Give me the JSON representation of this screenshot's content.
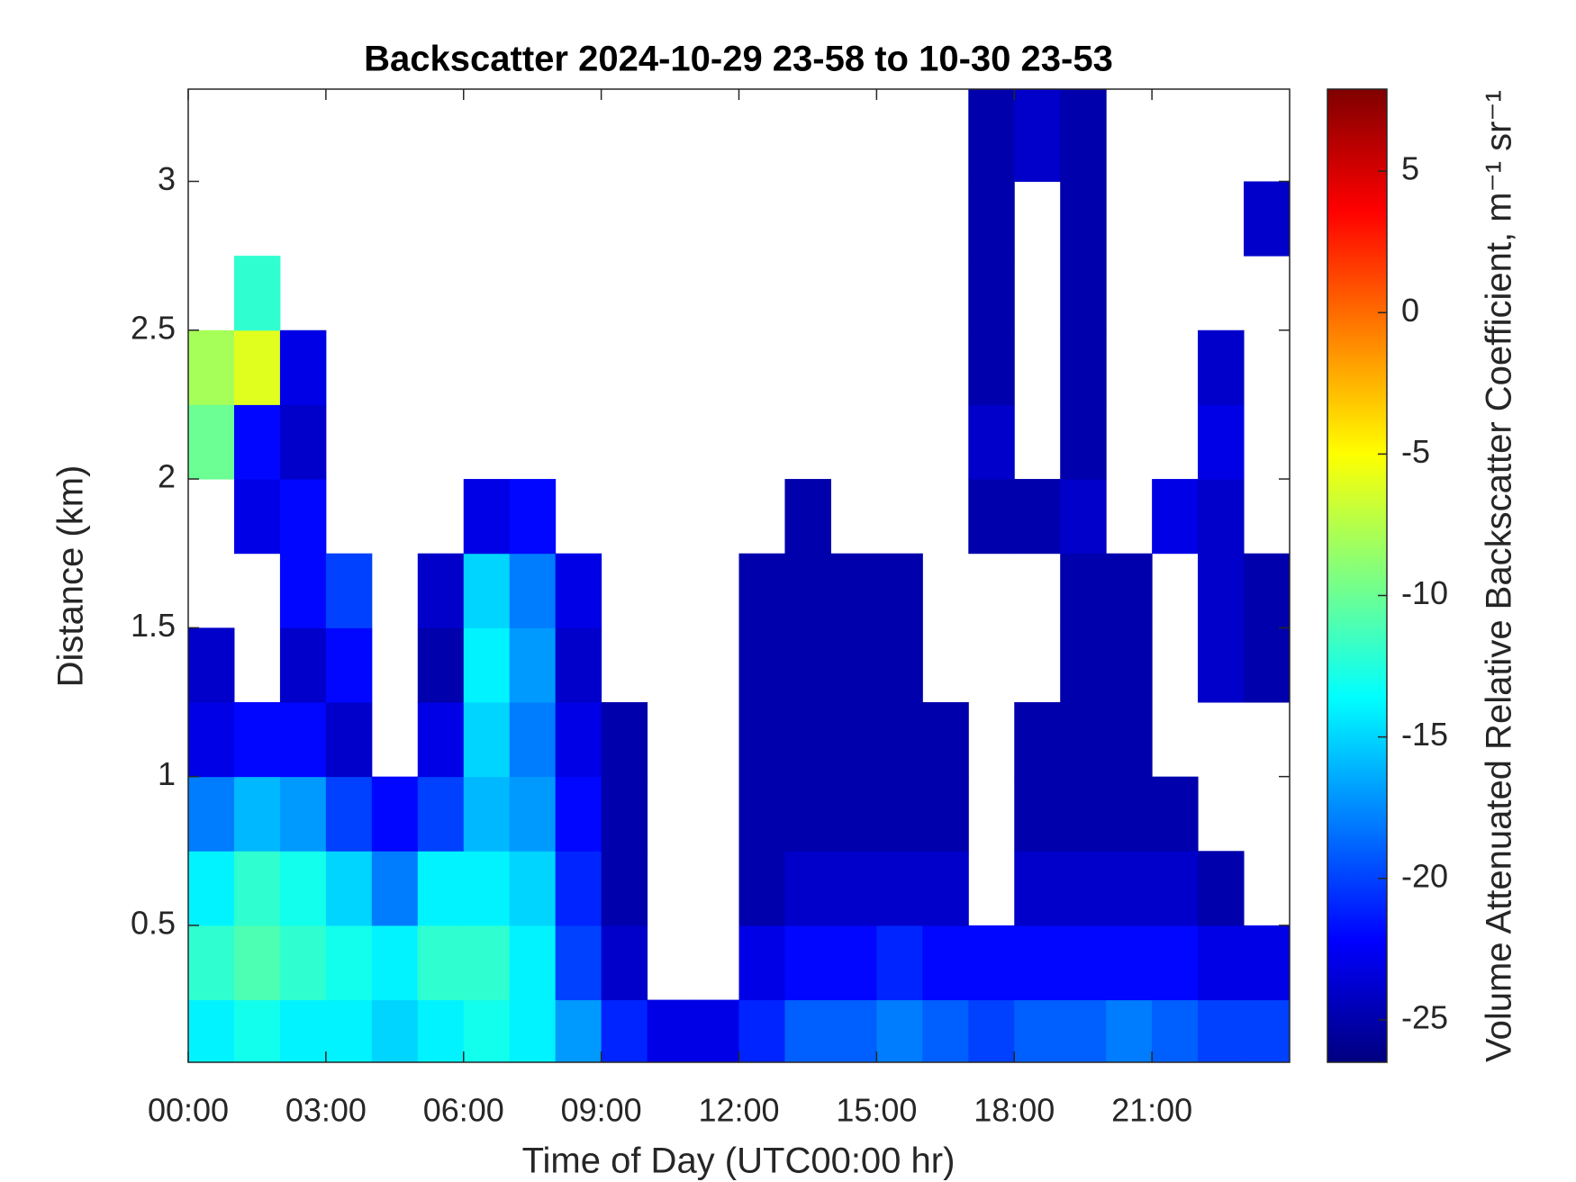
{
  "chart_data": {
    "type": "heatmap",
    "title": "Backscatter 2024-10-29 23-58 to 10-30 23-53",
    "x_label": "Time of Day (UTC00:00 hr)",
    "y_label": "Distance (km)",
    "colorbar_label": "Volume Attenuated Relative Backscatter Coefficient, m⁻¹ sr⁻¹",
    "colormap": "jet",
    "x_bins": [
      0,
      1,
      2,
      3,
      4,
      5,
      6,
      7,
      8,
      9,
      10,
      11,
      12,
      13,
      14,
      15,
      16,
      17,
      18,
      19,
      20,
      21,
      22,
      23,
      24
    ],
    "y_bins": [
      0.04,
      0.25,
      0.5,
      0.75,
      1,
      1.25,
      1.5,
      1.75,
      2,
      2.25,
      2.5,
      2.75,
      3,
      3.31
    ],
    "z": [
      [
        -14,
        -13,
        -14,
        -14,
        -15,
        -14,
        -13,
        -14,
        -17,
        -21,
        -23,
        -23,
        -21,
        -19,
        -19,
        -18,
        -19,
        -20,
        -19,
        -19,
        -18,
        -19,
        -20,
        -20
      ],
      [
        -12,
        -11,
        -12,
        -13,
        -14,
        -12,
        -12,
        -14,
        -20,
        -24,
        null,
        null,
        -23,
        -22,
        -22,
        -21,
        -22,
        -22,
        -22,
        -22,
        -22,
        -22,
        -23,
        -23
      ],
      [
        -14,
        -12,
        -13,
        -15,
        -18,
        -14,
        -14,
        -15,
        -21,
        -25,
        null,
        null,
        -25,
        -24,
        -24,
        -24,
        -24,
        null,
        -24,
        -24,
        -24,
        -24,
        -25,
        null
      ],
      [
        -18,
        -16,
        -17,
        -20,
        -22,
        -20,
        -16,
        -17,
        -22,
        -25,
        null,
        null,
        -25,
        -25,
        -25,
        -25,
        -25,
        null,
        -25,
        -25,
        -25,
        -25,
        null,
        null
      ],
      [
        -23,
        -22,
        -22,
        -24,
        null,
        -23,
        -15,
        -18,
        -23,
        -25,
        null,
        null,
        -25,
        -25,
        -25,
        -25,
        -25,
        null,
        -25,
        -25,
        -25,
        null,
        null,
        null
      ],
      [
        -24,
        null,
        -24,
        -22,
        null,
        -25,
        -14,
        -17,
        -24,
        null,
        null,
        null,
        -25,
        -25,
        -25,
        -25,
        null,
        null,
        null,
        -25,
        -25,
        null,
        -24,
        -25
      ],
      [
        null,
        null,
        -22,
        -20,
        null,
        -24,
        -15,
        -18,
        -23,
        null,
        null,
        null,
        -25,
        -25,
        -25,
        -25,
        null,
        null,
        null,
        -25,
        -25,
        null,
        -24,
        -25
      ],
      [
        null,
        -23,
        -22,
        null,
        null,
        null,
        -23,
        -22,
        null,
        null,
        null,
        null,
        null,
        -25,
        null,
        null,
        null,
        -25,
        -25,
        -24,
        null,
        -23,
        -24,
        null
      ],
      [
        -10,
        -22,
        -24,
        null,
        null,
        null,
        null,
        null,
        null,
        null,
        null,
        null,
        null,
        null,
        null,
        null,
        null,
        -24,
        null,
        -25,
        null,
        null,
        -23,
        null
      ],
      [
        -8,
        -6,
        -23,
        null,
        null,
        null,
        null,
        null,
        null,
        null,
        null,
        null,
        null,
        null,
        null,
        null,
        null,
        -25,
        null,
        -25,
        null,
        null,
        -24,
        null
      ],
      [
        null,
        -12,
        null,
        null,
        null,
        null,
        null,
        null,
        null,
        null,
        null,
        null,
        null,
        null,
        null,
        null,
        null,
        -25,
        null,
        -25,
        null,
        null,
        null,
        null
      ],
      [
        null,
        null,
        null,
        null,
        null,
        null,
        null,
        null,
        null,
        null,
        null,
        null,
        null,
        null,
        null,
        null,
        null,
        -25,
        null,
        -25,
        null,
        null,
        null,
        -24
      ],
      [
        null,
        null,
        null,
        null,
        null,
        null,
        null,
        null,
        null,
        null,
        null,
        null,
        null,
        null,
        null,
        null,
        null,
        -25,
        -24,
        -25,
        null,
        null,
        null,
        null
      ]
    ],
    "xlim": [
      0,
      24
    ],
    "xticks": [
      {
        "value": 0,
        "label": "00:00"
      },
      {
        "value": 3,
        "label": "03:00"
      },
      {
        "value": 6,
        "label": "06:00"
      },
      {
        "value": 9,
        "label": "09:00"
      },
      {
        "value": 12,
        "label": "12:00"
      },
      {
        "value": 15,
        "label": "15:00"
      },
      {
        "value": 18,
        "label": "18:00"
      },
      {
        "value": 21,
        "label": "21:00"
      }
    ],
    "ylim": [
      0.04,
      3.31
    ],
    "yticks": [
      0.5,
      1,
      1.5,
      2,
      2.5,
      3
    ],
    "clim": [
      -26.5,
      7.9
    ],
    "cticks": [
      -25,
      -20,
      -15,
      -10,
      -5,
      0,
      5
    ]
  }
}
